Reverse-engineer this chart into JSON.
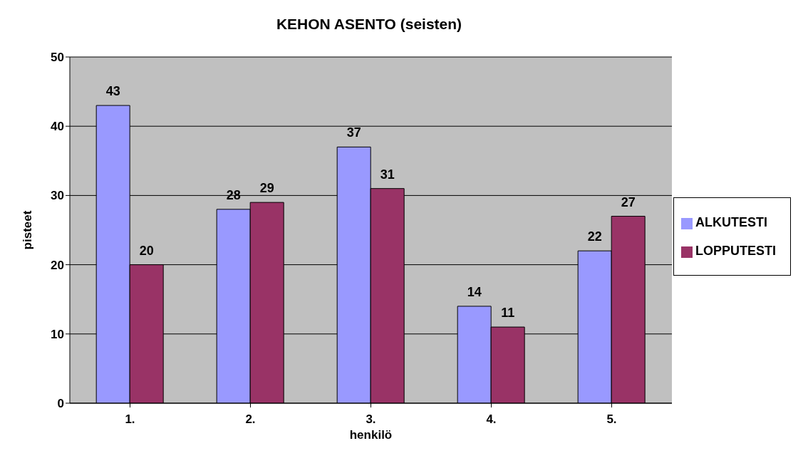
{
  "chart_data": {
    "type": "bar",
    "title": "KEHON ASENTO (seisten)",
    "xlabel": "henkilö",
    "ylabel": "pisteet",
    "categories": [
      "1.",
      "2.",
      "3.",
      "4.",
      "5."
    ],
    "series": [
      {
        "name": "ALKUTESTI",
        "color": "#9999ff",
        "values": [
          43,
          28,
          37,
          14,
          22
        ]
      },
      {
        "name": "LOPPUTESTI",
        "color": "#993366",
        "values": [
          20,
          29,
          31,
          11,
          27
        ]
      }
    ],
    "ylim": [
      0,
      50
    ],
    "yticks": [
      0,
      10,
      20,
      30,
      40,
      50
    ],
    "grid": "y",
    "legend": "right",
    "data_labels": true
  }
}
